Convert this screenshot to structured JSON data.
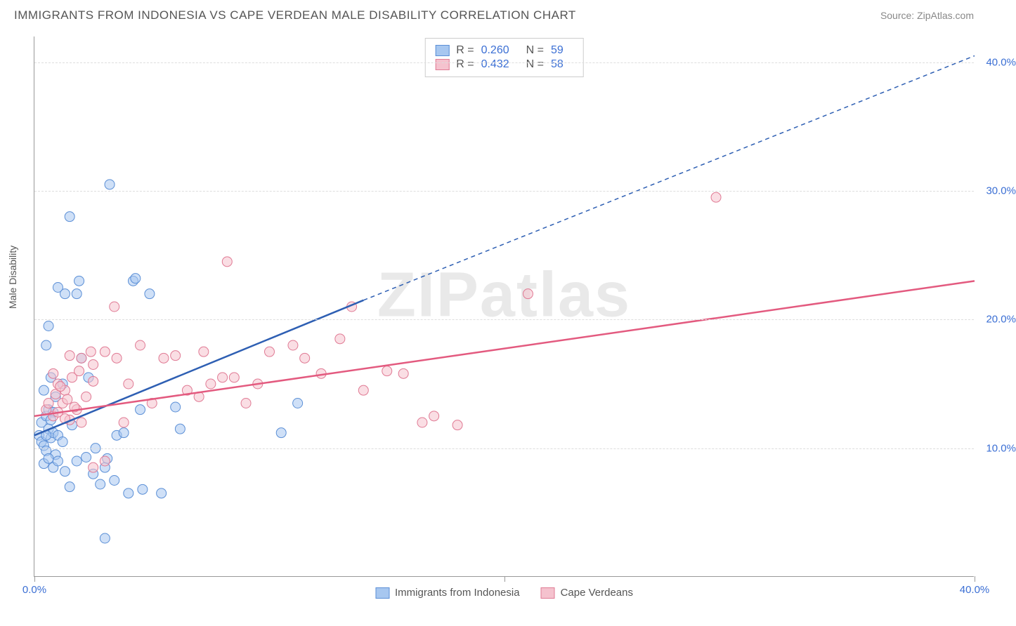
{
  "title": "IMMIGRANTS FROM INDONESIA VS CAPE VERDEAN MALE DISABILITY CORRELATION CHART",
  "source": "Source: ZipAtlas.com",
  "watermark": "ZIPatlas",
  "chart": {
    "type": "scatter",
    "ylabel": "Male Disability",
    "xlim": [
      0,
      40
    ],
    "ylim": [
      0,
      42
    ],
    "xticks": [
      0,
      20,
      40
    ],
    "xtick_labels": [
      "0.0%",
      "",
      "40.0%"
    ],
    "yticks": [
      10,
      20,
      30,
      40
    ],
    "ytick_labels": [
      "10.0%",
      "20.0%",
      "30.0%",
      "40.0%"
    ],
    "background_color": "#ffffff",
    "grid_color": "#dddddd",
    "axis_color": "#999999",
    "tick_label_color": "#3b6fd4",
    "marker_radius": 7,
    "marker_opacity": 0.55,
    "series": [
      {
        "name": "Immigrants from Indonesia",
        "fill": "#a7c7f0",
        "stroke": "#5b8fd6",
        "line_color": "#2e5fb3",
        "R": "0.260",
        "N": "59",
        "trend": {
          "x1": 0,
          "y1": 11.0,
          "x2": 14,
          "y2": 21.5,
          "x2_ext": 40,
          "y2_ext": 40.5
        },
        "points": [
          [
            0.2,
            11.0
          ],
          [
            0.3,
            10.5
          ],
          [
            0.4,
            10.2
          ],
          [
            0.5,
            9.8
          ],
          [
            0.6,
            11.5
          ],
          [
            0.7,
            10.8
          ],
          [
            0.8,
            11.2
          ],
          [
            0.9,
            9.5
          ],
          [
            0.3,
            12.0
          ],
          [
            0.5,
            12.5
          ],
          [
            0.4,
            8.8
          ],
          [
            0.6,
            9.2
          ],
          [
            0.8,
            8.5
          ],
          [
            1.0,
            11.0
          ],
          [
            1.2,
            10.5
          ],
          [
            0.5,
            18.0
          ],
          [
            0.6,
            19.5
          ],
          [
            1.0,
            22.5
          ],
          [
            1.3,
            22.0
          ],
          [
            1.5,
            28.0
          ],
          [
            3.2,
            30.5
          ],
          [
            1.8,
            22.0
          ],
          [
            1.9,
            23.0
          ],
          [
            4.2,
            23.0
          ],
          [
            4.9,
            22.0
          ],
          [
            4.3,
            23.2
          ],
          [
            0.7,
            15.5
          ],
          [
            0.9,
            14.0
          ],
          [
            1.2,
            15.0
          ],
          [
            2.0,
            17.0
          ],
          [
            2.3,
            15.5
          ],
          [
            3.5,
            11.0
          ],
          [
            3.8,
            11.2
          ],
          [
            4.5,
            13.0
          ],
          [
            6.0,
            13.2
          ],
          [
            6.2,
            11.5
          ],
          [
            2.5,
            8.0
          ],
          [
            2.8,
            7.2
          ],
          [
            3.0,
            8.5
          ],
          [
            3.4,
            7.5
          ],
          [
            4.0,
            6.5
          ],
          [
            4.6,
            6.8
          ],
          [
            5.4,
            6.5
          ],
          [
            1.5,
            7.0
          ],
          [
            1.8,
            9.0
          ],
          [
            2.2,
            9.3
          ],
          [
            2.6,
            10.0
          ],
          [
            3.1,
            9.2
          ],
          [
            10.5,
            11.2
          ],
          [
            11.2,
            13.5
          ],
          [
            3.0,
            3.0
          ],
          [
            0.4,
            14.5
          ],
          [
            0.6,
            13.0
          ],
          [
            0.8,
            12.8
          ],
          [
            1.0,
            9.0
          ],
          [
            1.3,
            8.2
          ],
          [
            1.6,
            11.8
          ],
          [
            0.5,
            11.0
          ],
          [
            0.7,
            12.2
          ]
        ]
      },
      {
        "name": "Cape Verdeans",
        "fill": "#f5c2ce",
        "stroke": "#e07a94",
        "line_color": "#e35a7f",
        "R": "0.432",
        "N": "58",
        "trend": {
          "x1": 0,
          "y1": 12.5,
          "x2": 40,
          "y2": 23.0
        },
        "points": [
          [
            0.5,
            13.0
          ],
          [
            0.8,
            12.5
          ],
          [
            1.0,
            12.8
          ],
          [
            1.2,
            13.5
          ],
          [
            1.5,
            12.2
          ],
          [
            1.8,
            13.0
          ],
          [
            2.0,
            12.0
          ],
          [
            1.0,
            15.0
          ],
          [
            1.3,
            14.5
          ],
          [
            1.6,
            15.5
          ],
          [
            2.2,
            14.0
          ],
          [
            2.5,
            15.2
          ],
          [
            2.0,
            17.0
          ],
          [
            2.5,
            16.5
          ],
          [
            3.0,
            17.5
          ],
          [
            3.5,
            17.0
          ],
          [
            4.0,
            15.0
          ],
          [
            3.4,
            21.0
          ],
          [
            4.5,
            18.0
          ],
          [
            5.5,
            17.0
          ],
          [
            6.5,
            14.5
          ],
          [
            8.2,
            24.5
          ],
          [
            7.0,
            14.0
          ],
          [
            7.5,
            15.0
          ],
          [
            8.0,
            15.5
          ],
          [
            9.0,
            13.5
          ],
          [
            10.0,
            17.5
          ],
          [
            11.0,
            18.0
          ],
          [
            12.2,
            15.8
          ],
          [
            13.5,
            21.0
          ],
          [
            14.0,
            14.5
          ],
          [
            15.0,
            16.0
          ],
          [
            15.7,
            15.8
          ],
          [
            16.5,
            12.0
          ],
          [
            17.0,
            12.5
          ],
          [
            18.0,
            11.8
          ],
          [
            21.0,
            22.0
          ],
          [
            2.5,
            8.5
          ],
          [
            3.0,
            9.0
          ],
          [
            1.3,
            12.3
          ],
          [
            1.7,
            13.2
          ],
          [
            3.8,
            12.0
          ],
          [
            5.0,
            13.5
          ],
          [
            6.0,
            17.2
          ],
          [
            7.2,
            17.5
          ],
          [
            8.5,
            15.5
          ],
          [
            9.5,
            15.0
          ],
          [
            11.5,
            17.0
          ],
          [
            13.0,
            18.5
          ],
          [
            29.0,
            29.5
          ],
          [
            0.6,
            13.5
          ],
          [
            0.9,
            14.2
          ],
          [
            1.4,
            13.8
          ],
          [
            1.9,
            16.0
          ],
          [
            2.4,
            17.5
          ],
          [
            0.8,
            15.8
          ],
          [
            1.1,
            14.8
          ],
          [
            1.5,
            17.2
          ]
        ]
      }
    ]
  },
  "legend_bottom": [
    {
      "label": "Immigrants from Indonesia",
      "fill": "#a7c7f0",
      "stroke": "#5b8fd6"
    },
    {
      "label": "Cape Verdeans",
      "fill": "#f5c2ce",
      "stroke": "#e07a94"
    }
  ]
}
